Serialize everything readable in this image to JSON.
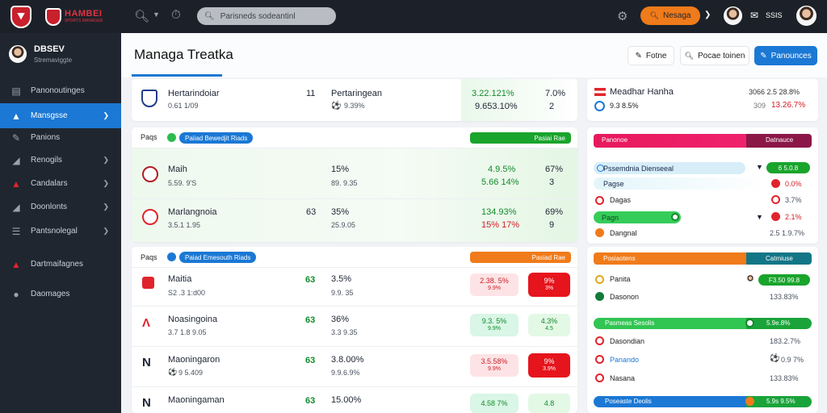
{
  "topbar": {
    "brand": "HAMBEI",
    "brand_sub": "SPORTS MANAGER",
    "search_placeholder": "Parisneds sodeantinl",
    "cta": "Nesaga",
    "user_label": "SSIS"
  },
  "sidebar": {
    "profile_name": "DBSEV",
    "profile_sub": "Stremaviggte",
    "items": [
      {
        "label": "Panonoutinges"
      },
      {
        "label": "Mansgsse"
      },
      {
        "label": "Panions"
      },
      {
        "label": "Renogils"
      },
      {
        "label": "Candalars"
      },
      {
        "label": "Doonlonts"
      },
      {
        "label": "Pantsnolegal"
      },
      {
        "label": "Dartmaifagnes"
      },
      {
        "label": "Daomages"
      }
    ]
  },
  "header": {
    "title": "Managa Treatka",
    "btn1": "Fotne",
    "btn2": "Pocae toinen",
    "btn3": "Panounces"
  },
  "top_match": {
    "home": "Hertarindoiar",
    "home_sub": "0.61 1/09",
    "score": "11",
    "away": "Pertaringean",
    "away_sub": "9.39%",
    "pct1": "3.22.121%",
    "pct1b": "9.653.10%",
    "pct2": "7.0%",
    "pct2b": "2"
  },
  "section1": {
    "label": "Paqs",
    "badge": "Paiiad Bewedjit Riads",
    "status": "Pasiai Rae",
    "rows": [
      {
        "name": "Maih",
        "sub": "5.59. 9'S",
        "score": "",
        "v1": "15%",
        "v1b": "89. 9.35",
        "p1": "4.9.5%",
        "p1b": "5.66 14%",
        "p2": "67%",
        "p2b": "3"
      },
      {
        "name": "Marlangnoia",
        "sub": "3.5.1 1.95",
        "score": "63",
        "v1": "35%",
        "v1b": "25.9.05",
        "p1": "134.93%",
        "p1b": "15% 17%",
        "p2": "69%",
        "p2b": "9"
      }
    ]
  },
  "section2": {
    "label": "Paqs",
    "badge": "Paiad Emesouth Riads",
    "status": "Pasiad Rae",
    "rows": [
      {
        "name": "Maitia",
        "sub": "S2 .3 1:d00",
        "score": "63",
        "v1": "3.5%",
        "v1b": "9.9. 35",
        "c1": "2.38. 5%",
        "c1b": "9.9%",
        "c1t": "red",
        "c2": "9%",
        "c2b": "3%",
        "c2t": "redsolid"
      },
      {
        "name": "Noasingoina",
        "sub": "3.7 1.8 9.05",
        "score": "63",
        "v1": "36%",
        "v1b": "3.3 9.35",
        "c1": "9.3. 5%",
        "c1b": "9.9%",
        "c1t": "green",
        "c2": "4.3%",
        "c2b": "4.5",
        "c2t": "green"
      },
      {
        "name": "Maoningaron",
        "sub": "9 5.409",
        "score": "63",
        "v1": "3.8.00%",
        "v1b": "9.9.6.9%",
        "c1": "3.5.58%",
        "c1b": "9.9%",
        "c1t": "red",
        "c2": "9%",
        "c2b": "3.9%",
        "c2t": "redsolid"
      },
      {
        "name": "Maoningaman",
        "sub": "",
        "score": "63",
        "v1": "15.00%",
        "v1b": "",
        "c1": "4.58 7%",
        "c1b": "",
        "c1t": "green",
        "c2": "4.8",
        "c2b": "",
        "c2t": "green"
      }
    ]
  },
  "right_top": {
    "team1": "Meadhar Hanha",
    "team1_val": "3066 2.5 28.8%",
    "team2": "9.3 8.5%",
    "team2_val_a": "309",
    "team2_val_b": "13.26.7%"
  },
  "right_panel1": {
    "bar_left": "Panonoe",
    "bar_right": "Datnauce",
    "rows": [
      {
        "label": "Pssemdnia Dienseeal",
        "value": "6 5.0.8"
      },
      {
        "label": "Pagse",
        "value": "0.0%"
      },
      {
        "label": "Dagas",
        "value": "3.7%"
      },
      {
        "label": "Pagn",
        "value": "2.1%"
      },
      {
        "label": "Dangnal",
        "value": "2.5 1.9.7%"
      }
    ]
  },
  "right_panel2": {
    "bar_left": "Posiaotens",
    "bar_right": "Catmiuse",
    "rows": [
      {
        "label": "Panita",
        "value": "F3.50 99.8"
      },
      {
        "label": "Dasonon",
        "value": "133.83%"
      }
    ]
  },
  "right_panel3": {
    "bar_left": "Pasmeas Sesolis",
    "bar_val": "5.9e.8%",
    "rows": [
      {
        "label": "Dasondian",
        "value": "183.2.7%"
      },
      {
        "label": "Panando",
        "value": "0.9 7%"
      },
      {
        "label": "Nasana",
        "value": "133.83%"
      }
    ]
  },
  "right_panel4": {
    "bar_left": "Poseaste Deolis",
    "bar_val": "5.9s 9.5%"
  },
  "colors": {
    "accent": "#1b78d4",
    "orange": "#f07b1a",
    "green": "#1aa33a",
    "red": "#e0242c"
  }
}
